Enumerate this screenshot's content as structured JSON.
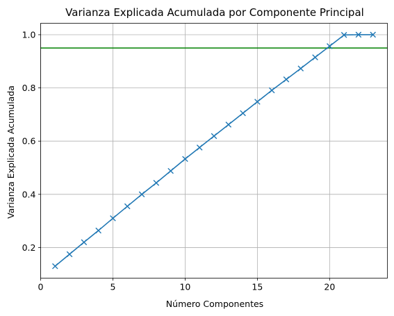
{
  "chart_data": {
    "type": "line",
    "title": "Varianza Explicada Acumulada por Componente Principal",
    "xlabel": "Número Componentes",
    "ylabel": "Varianza Explicada Acumulada",
    "xlim": [
      0,
      24
    ],
    "ylim": [
      0.085,
      1.043
    ],
    "xticks": [
      0,
      5,
      10,
      15,
      20
    ],
    "yticks": [
      0.2,
      0.4,
      0.6,
      0.8,
      1.0
    ],
    "xtick_labels": [
      "0",
      "5",
      "10",
      "15",
      "20"
    ],
    "ytick_labels": [
      "0.2",
      "0.4",
      "0.6",
      "0.8",
      "1.0"
    ],
    "grid": true,
    "series": [
      {
        "color": "#1f77b4",
        "marker": "x",
        "x": [
          1,
          2,
          3,
          4,
          5,
          6,
          7,
          8,
          9,
          10,
          11,
          12,
          13,
          14,
          15,
          16,
          17,
          18,
          19,
          20,
          21,
          22,
          23
        ],
        "y": [
          0.13,
          0.175,
          0.22,
          0.264,
          0.31,
          0.355,
          0.4,
          0.443,
          0.488,
          0.533,
          0.576,
          0.619,
          0.662,
          0.705,
          0.748,
          0.791,
          0.832,
          0.873,
          0.915,
          0.957,
          0.999,
          1.0,
          1.0
        ]
      }
    ],
    "hline": {
      "y": 0.95,
      "color": "#008000"
    }
  }
}
